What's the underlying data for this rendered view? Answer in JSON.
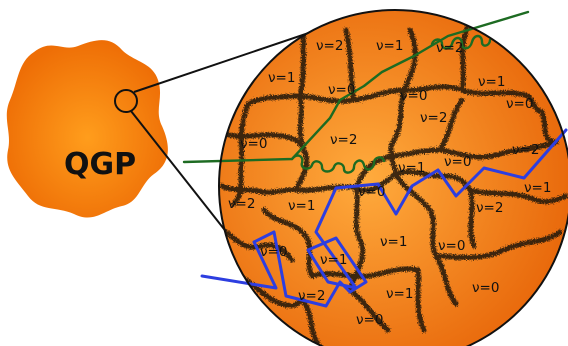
{
  "title": "QGP",
  "colors": {
    "blob_outer": "#ee6e06",
    "blob_inner": "#ff9d1c",
    "disc_outer": "#e8670a",
    "disc_inner": "#ffab3d",
    "domain_wall": "#2a1a0e",
    "green_path": "#1d6b22",
    "blue_path": "#2d3ee0",
    "outline": "#111111"
  },
  "labels": [
    {
      "id": "l1",
      "text": "ν=2"
    },
    {
      "id": "l2",
      "text": "ν=1"
    },
    {
      "id": "l3",
      "text": "ν=2"
    },
    {
      "id": "l4",
      "text": "ν=1"
    },
    {
      "id": "l5",
      "text": "ν=0"
    },
    {
      "id": "l6",
      "text": "ν=0"
    },
    {
      "id": "l7",
      "text": "ν=1"
    },
    {
      "id": "l8",
      "text": "ν=0"
    },
    {
      "id": "l9",
      "text": "ν=2"
    },
    {
      "id": "l10",
      "text": "ν=0"
    },
    {
      "id": "l11",
      "text": "ν=2"
    },
    {
      "id": "l12",
      "text": "ν=1"
    },
    {
      "id": "l13",
      "text": "ν=0"
    },
    {
      "id": "l14",
      "text": "ν=2"
    },
    {
      "id": "l15",
      "text": "ν=1"
    },
    {
      "id": "l16",
      "text": "ν=0"
    },
    {
      "id": "l17",
      "text": "ν=2"
    },
    {
      "id": "l18",
      "text": "ν=1"
    },
    {
      "id": "l19",
      "text": "ν=0"
    },
    {
      "id": "l20",
      "text": "ν=1"
    },
    {
      "id": "l21",
      "text": "ν=0"
    },
    {
      "id": "l22",
      "text": "ν=2"
    },
    {
      "id": "l23",
      "text": "ν=1"
    },
    {
      "id": "l24",
      "text": "ν=2"
    },
    {
      "id": "l25",
      "text": "ν=1"
    },
    {
      "id": "l26",
      "text": "ν=0"
    }
  ]
}
